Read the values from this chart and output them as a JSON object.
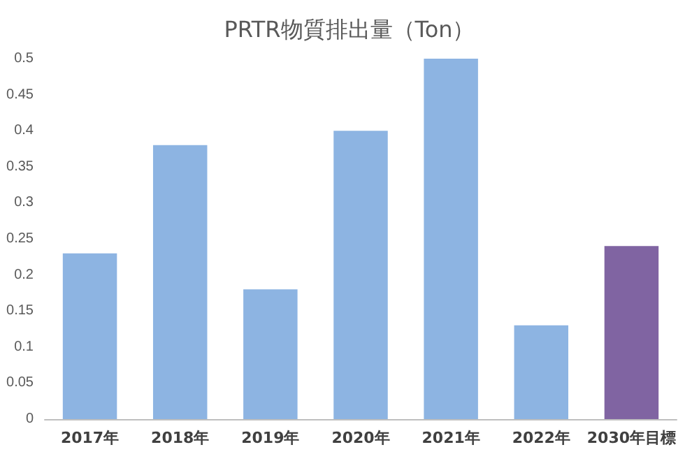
{
  "chart_data": {
    "type": "bar",
    "title": "PRTR物質排出量（Ton）",
    "categories": [
      "2017年",
      "2018年",
      "2019年",
      "2020年",
      "2021年",
      "2022年",
      "2030年目標"
    ],
    "values": [
      0.23,
      0.38,
      0.18,
      0.4,
      0.5,
      0.13,
      0.24
    ],
    "colors": [
      "#8db4e2",
      "#8db4e2",
      "#8db4e2",
      "#8db4e2",
      "#8db4e2",
      "#8db4e2",
      "#8064a2"
    ],
    "ylim": [
      0,
      0.5
    ],
    "yticks": [
      0,
      0.05,
      0.1,
      0.15,
      0.2,
      0.25,
      0.3,
      0.35,
      0.4,
      0.45,
      0.5
    ]
  }
}
